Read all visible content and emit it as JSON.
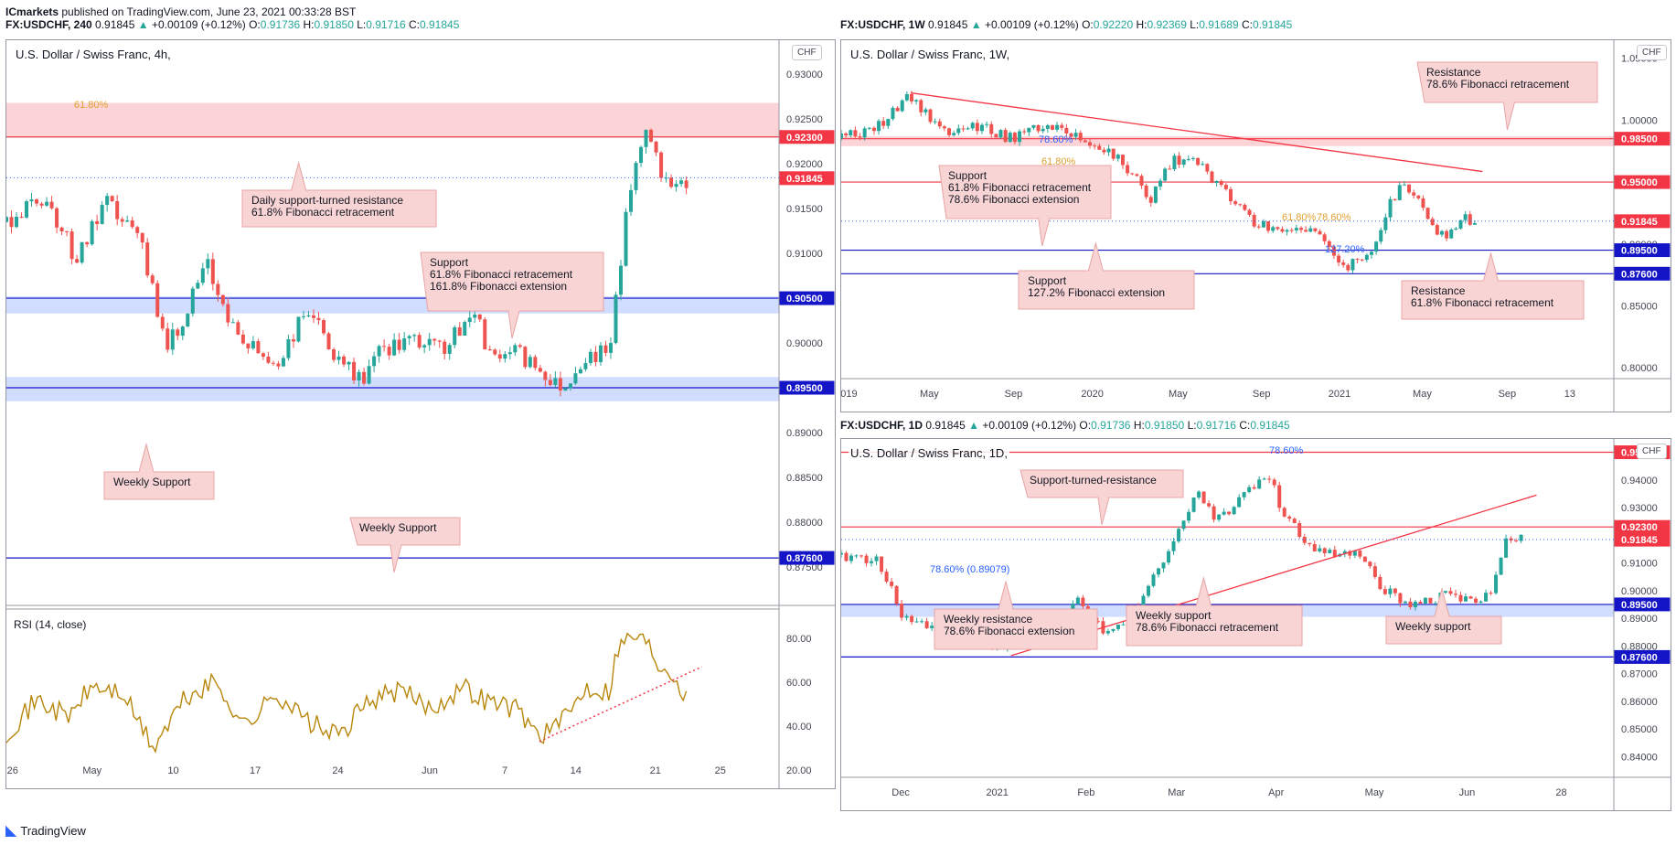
{
  "header": {
    "publisher": "ICmarkets",
    "text": " published on TradingView.com, June 23, 2021 00:33:28 BST"
  },
  "brand": {
    "name": "TradingView",
    "logo_icon": "tradingview-logo-icon"
  },
  "colors": {
    "up": "#26a69a",
    "down": "#ef5350",
    "resistance_line": "#f23645",
    "support_line": "#1515c8",
    "zone_red": "rgba(242,54,69,0.22)",
    "zone_blue": "rgba(41,98,255,0.22)",
    "callout_fill": "#f8d4d4",
    "callout_stroke": "#e8a4a4",
    "rsi": "#b8860b",
    "fib": "#e0a030"
  },
  "panels": {
    "h4": {
      "ohlc": {
        "symbol": "FX:USDCHF, 240",
        "last": "0.91845",
        "change": "+0.00109 (+0.12%)",
        "o_label": "O:",
        "o": "0.91736",
        "h_label": "H:",
        "h": "0.91850",
        "l_label": "L:",
        "l": "0.91716",
        "c_label": "C:",
        "c": "0.91845"
      },
      "title": "U.S. Dollar / Swiss Franc, 4h,",
      "currency_badge": "CHF",
      "rsi_label": "RSI (14, close)"
    },
    "w1": {
      "ohlc": {
        "symbol": "FX:USDCHF, 1W",
        "last": "0.91845",
        "change": "+0.00109 (+0.12%)",
        "o_label": "O:",
        "o": "0.92220",
        "h_label": "H:",
        "h": "0.92369",
        "l_label": "L:",
        "l": "0.91689",
        "c_label": "C:",
        "c": "0.91845"
      },
      "title": "U.S. Dollar / Swiss Franc, 1W,",
      "currency_badge": "CHF"
    },
    "d1": {
      "ohlc": {
        "symbol": "FX:USDCHF, 1D",
        "last": "0.91845",
        "change": "+0.00109 (+0.12%)",
        "o_label": "O:",
        "o": "0.91736",
        "h_label": "H:",
        "h": "0.91850",
        "l_label": "L:",
        "l": "0.91716",
        "c_label": "C:",
        "c": "0.91845"
      },
      "title": "U.S. Dollar / Swiss Franc, 1D,",
      "currency_badge": "CHF"
    }
  },
  "chart_data": [
    {
      "id": "h4",
      "type": "candlestick",
      "title": "U.S. Dollar / Swiss Franc, 4h,",
      "ylim": [
        0.8707,
        0.9338
      ],
      "y_ticks": [
        "0.93000",
        "0.92500",
        "0.92000",
        "0.91500",
        "0.91000",
        "0.90500",
        "0.90000",
        "0.89500",
        "0.89000",
        "0.88500",
        "0.88000",
        "0.87500"
      ],
      "y_tick_values": [
        0.93,
        0.925,
        0.92,
        0.915,
        0.91,
        0.905,
        0.9,
        0.895,
        0.89,
        0.885,
        0.88,
        0.875
      ],
      "x_ticks": [
        "26",
        "May",
        "10",
        "17",
        "24",
        "Jun",
        "7",
        "14",
        "21",
        "25"
      ],
      "x_tick_positions": [
        0.008,
        0.111,
        0.216,
        0.322,
        0.429,
        0.548,
        0.645,
        0.737,
        0.84,
        0.924
      ],
      "last_price": 0.91845,
      "series_path": [
        [
          0.0,
          0.9135
        ],
        [
          0.05,
          0.9165
        ],
        [
          0.09,
          0.9095
        ],
        [
          0.13,
          0.9155
        ],
        [
          0.17,
          0.912
        ],
        [
          0.21,
          0.8995
        ],
        [
          0.26,
          0.9085
        ],
        [
          0.3,
          0.9005
        ],
        [
          0.35,
          0.8975
        ],
        [
          0.39,
          0.904
        ],
        [
          0.43,
          0.8975
        ],
        [
          0.46,
          0.896
        ],
        [
          0.49,
          0.8995
        ],
        [
          0.53,
          0.9
        ],
        [
          0.57,
          0.8995
        ],
        [
          0.61,
          0.904
        ],
        [
          0.62,
          0.899
        ],
        [
          0.66,
          0.899
        ],
        [
          0.7,
          0.8965
        ],
        [
          0.72,
          0.895
        ],
        [
          0.75,
          0.8985
        ],
        [
          0.78,
          0.899
        ],
        [
          0.8,
          0.913
        ],
        [
          0.82,
          0.9225
        ],
        [
          0.835,
          0.923
        ],
        [
          0.85,
          0.9185
        ],
        [
          0.88,
          0.9182
        ]
      ],
      "levels": [
        {
          "price": 0.923,
          "label": "0.92300",
          "kind": "resistance"
        },
        {
          "price": 0.9184,
          "label": "0.91845",
          "kind": "last"
        },
        {
          "price": 0.905,
          "label": "0.90500",
          "kind": "support"
        },
        {
          "price": 0.895,
          "label": "0.89500",
          "kind": "support"
        },
        {
          "price": 0.876,
          "label": "0.87600",
          "kind": "support"
        }
      ],
      "zones": [
        {
          "from": 0.923,
          "to": 0.9268,
          "kind": "resistance"
        },
        {
          "from": 0.9033,
          "to": 0.9052,
          "kind": "support"
        },
        {
          "from": 0.8935,
          "to": 0.8962,
          "kind": "support"
        }
      ],
      "fib_labels": [
        "61.80%",
        "61.80%",
        "161.80%"
      ],
      "callouts": [
        {
          "text": [
            "Daily support-turned resistance",
            "61.8% Fibonacci retracement"
          ]
        },
        {
          "text": [
            "Support",
            "61.8% Fibonacci retracement",
            "161.8% Fibonacci extension"
          ]
        },
        {
          "text": [
            "Weekly Support"
          ]
        },
        {
          "text": [
            "Weekly Support"
          ]
        }
      ],
      "rsi": {
        "label": "RSI (14, close)",
        "ylim": [
          20,
          90
        ],
        "y_ticks": [
          "80.00",
          "60.00",
          "40.00",
          "20.00"
        ],
        "y_tick_values": [
          80,
          60,
          40,
          20
        ],
        "series_path": [
          [
            0.0,
            37
          ],
          [
            0.04,
            52
          ],
          [
            0.08,
            44
          ],
          [
            0.11,
            58
          ],
          [
            0.15,
            55
          ],
          [
            0.19,
            30
          ],
          [
            0.23,
            52
          ],
          [
            0.27,
            60
          ],
          [
            0.31,
            40
          ],
          [
            0.35,
            55
          ],
          [
            0.39,
            42
          ],
          [
            0.43,
            35
          ],
          [
            0.47,
            52
          ],
          [
            0.51,
            56
          ],
          [
            0.55,
            48
          ],
          [
            0.59,
            58
          ],
          [
            0.62,
            52
          ],
          [
            0.66,
            48
          ],
          [
            0.69,
            36
          ],
          [
            0.72,
            42
          ],
          [
            0.75,
            58
          ],
          [
            0.78,
            56
          ],
          [
            0.79,
            75
          ],
          [
            0.81,
            82
          ],
          [
            0.83,
            78
          ],
          [
            0.845,
            68
          ],
          [
            0.86,
            66
          ],
          [
            0.875,
            56
          ],
          [
            0.88,
            58
          ]
        ],
        "trendline": [
          [
            0.69,
            33
          ],
          [
            0.9,
            67
          ]
        ]
      }
    },
    {
      "id": "w1",
      "type": "candlestick",
      "title": "U.S. Dollar / Swiss Franc, 1W,",
      "ylim": [
        0.7913,
        1.0645
      ],
      "y_ticks": [
        "1.05000",
        "1.00000",
        "0.90000",
        "0.85000",
        "0.80000"
      ],
      "y_tick_values": [
        1.05,
        1.0,
        0.9,
        0.85,
        0.8
      ],
      "x_ticks": [
        "019",
        "May",
        "Sep",
        "2020",
        "May",
        "Sep",
        "2021",
        "May",
        "Sep",
        "13"
      ],
      "x_tick_positions": [
        0.01,
        0.114,
        0.223,
        0.325,
        0.436,
        0.544,
        0.645,
        0.752,
        0.862,
        0.943
      ],
      "last_price": 0.91845,
      "series_path": [
        [
          0.0,
          0.985
        ],
        [
          0.05,
          0.995
        ],
        [
          0.09,
          1.02
        ],
        [
          0.13,
          0.99
        ],
        [
          0.18,
          0.995
        ],
        [
          0.22,
          0.985
        ],
        [
          0.27,
          0.998
        ],
        [
          0.31,
          0.985
        ],
        [
          0.35,
          0.975
        ],
        [
          0.38,
          0.955
        ],
        [
          0.4,
          0.935
        ],
        [
          0.43,
          0.97
        ],
        [
          0.46,
          0.965
        ],
        [
          0.5,
          0.94
        ],
        [
          0.54,
          0.915
        ],
        [
          0.58,
          0.912
        ],
        [
          0.61,
          0.915
        ],
        [
          0.635,
          0.89
        ],
        [
          0.66,
          0.882
        ],
        [
          0.69,
          0.9
        ],
        [
          0.71,
          0.935
        ],
        [
          0.73,
          0.95
        ],
        [
          0.76,
          0.92
        ],
        [
          0.78,
          0.905
        ],
        [
          0.8,
          0.9205
        ],
        [
          0.82,
          0.9184
        ]
      ],
      "levels": [
        {
          "price": 0.985,
          "label": "0.98500",
          "kind": "resistance"
        },
        {
          "price": 0.95,
          "label": "0.95000",
          "kind": "resistance"
        },
        {
          "price": 0.9184,
          "label": "0.91845",
          "kind": "last"
        },
        {
          "price": 0.895,
          "label": "0.89500",
          "kind": "support"
        },
        {
          "price": 0.876,
          "label": "0.87600",
          "kind": "support"
        }
      ],
      "zones": [
        {
          "from": 0.979,
          "to": 0.987,
          "kind": "resistance"
        }
      ],
      "trendline": [
        [
          0.09,
          1.022
        ],
        [
          0.83,
          0.9585
        ]
      ],
      "fib_labels": [
        "78.60%",
        "61.80%",
        "61.80%",
        "78.60%",
        "127.20%"
      ],
      "callouts": [
        {
          "text": [
            "Resistance",
            "78.6% Fibonacci retracement"
          ]
        },
        {
          "text": [
            "Support",
            "61.8% Fibonacci retracement",
            "78.6% Fibonacci extension"
          ]
        },
        {
          "text": [
            "Support",
            "127.2% Fibonacci extension"
          ]
        },
        {
          "text": [
            "Resistance",
            "61.8% Fibonacci retracement"
          ]
        }
      ]
    },
    {
      "id": "d1",
      "type": "candlestick",
      "title": "U.S. Dollar / Swiss Franc, 1D,",
      "ylim": [
        0.8325,
        0.9548
      ],
      "y_ticks": [
        "0.94000",
        "0.93000",
        "0.91000",
        "0.90000",
        "0.89000",
        "0.88000",
        "0.87000",
        "0.86000",
        "0.85000",
        "0.84000"
      ],
      "y_tick_values": [
        0.94,
        0.93,
        0.91,
        0.9,
        0.89,
        0.88,
        0.87,
        0.86,
        0.85,
        0.84
      ],
      "x_ticks": [
        "Dec",
        "2021",
        "Feb",
        "Mar",
        "Apr",
        "May",
        "Jun",
        "28"
      ],
      "x_tick_positions": [
        0.077,
        0.202,
        0.317,
        0.434,
        0.563,
        0.69,
        0.81,
        0.932
      ],
      "last_price": 0.91845,
      "series_path": [
        [
          0.0,
          0.913
        ],
        [
          0.05,
          0.91
        ],
        [
          0.08,
          0.89
        ],
        [
          0.12,
          0.885
        ],
        [
          0.16,
          0.882
        ],
        [
          0.21,
          0.88
        ],
        [
          0.24,
          0.886
        ],
        [
          0.28,
          0.886
        ],
        [
          0.31,
          0.897
        ],
        [
          0.34,
          0.884
        ],
        [
          0.38,
          0.893
        ],
        [
          0.42,
          0.912
        ],
        [
          0.46,
          0.935
        ],
        [
          0.49,
          0.925
        ],
        [
          0.52,
          0.935
        ],
        [
          0.55,
          0.943
        ],
        [
          0.57,
          0.93
        ],
        [
          0.6,
          0.918
        ],
        [
          0.64,
          0.912
        ],
        [
          0.67,
          0.913
        ],
        [
          0.7,
          0.9
        ],
        [
          0.74,
          0.895
        ],
        [
          0.78,
          0.898
        ],
        [
          0.82,
          0.897
        ],
        [
          0.84,
          0.9
        ],
        [
          0.86,
          0.92
        ],
        [
          0.88,
          0.9185
        ]
      ],
      "levels": [
        {
          "price": 0.95,
          "label": "0.95000",
          "kind": "resistance"
        },
        {
          "price": 0.923,
          "label": "0.92300",
          "kind": "resistance"
        },
        {
          "price": 0.9184,
          "label": "0.91845",
          "kind": "last"
        },
        {
          "price": 0.895,
          "label": "0.89500",
          "kind": "support"
        },
        {
          "price": 0.876,
          "label": "0.87600",
          "kind": "support"
        }
      ],
      "zones": [
        {
          "from": 0.8905,
          "to": 0.8952,
          "kind": "support"
        }
      ],
      "trendline": [
        [
          0.22,
          0.8765
        ],
        [
          0.9,
          0.9345
        ]
      ],
      "fib_labels": [
        "78.60%",
        "78.60% (0.89079)"
      ],
      "callouts": [
        {
          "text": [
            "Support-turned-resistance"
          ]
        },
        {
          "text": [
            "Weekly resistance",
            "78.6% Fibonacci extension"
          ]
        },
        {
          "text": [
            "Weekly support",
            "78.6% Fibonacci retracement"
          ]
        },
        {
          "text": [
            "Weekly support"
          ]
        }
      ]
    }
  ]
}
